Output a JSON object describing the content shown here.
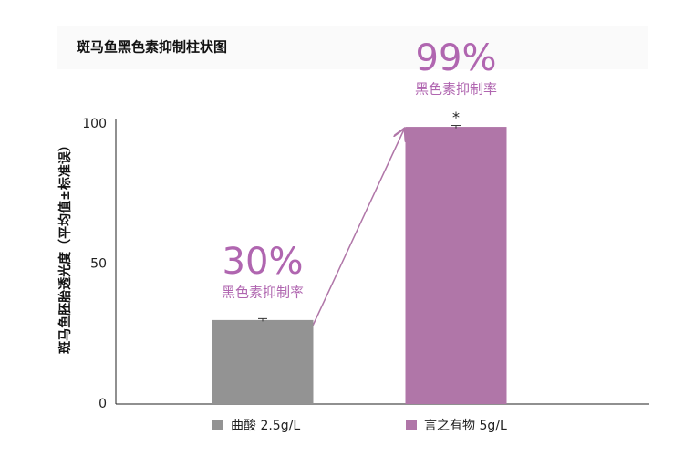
{
  "chart_data": {
    "type": "bar",
    "title": "斑马鱼黑色素抑制柱状图",
    "y_label": "斑马鱼胚胎透光度（平均值±标准误）",
    "categories": [
      "曲酸 2.5g/L",
      "言之有物 5g/L"
    ],
    "values": [
      30,
      99
    ],
    "errors": [
      0.5,
      0.5
    ],
    "value_labels": [
      "30%",
      "99%"
    ],
    "annotations": [
      "黑色素抑制率",
      "黑色素抑制率"
    ],
    "significance": [
      null,
      "*"
    ],
    "colors": [
      "#939393",
      "#b076a8"
    ],
    "ylim": [
      0,
      100
    ],
    "yticks": [
      0,
      50,
      100
    ],
    "grid": false,
    "legend": "bottom"
  }
}
